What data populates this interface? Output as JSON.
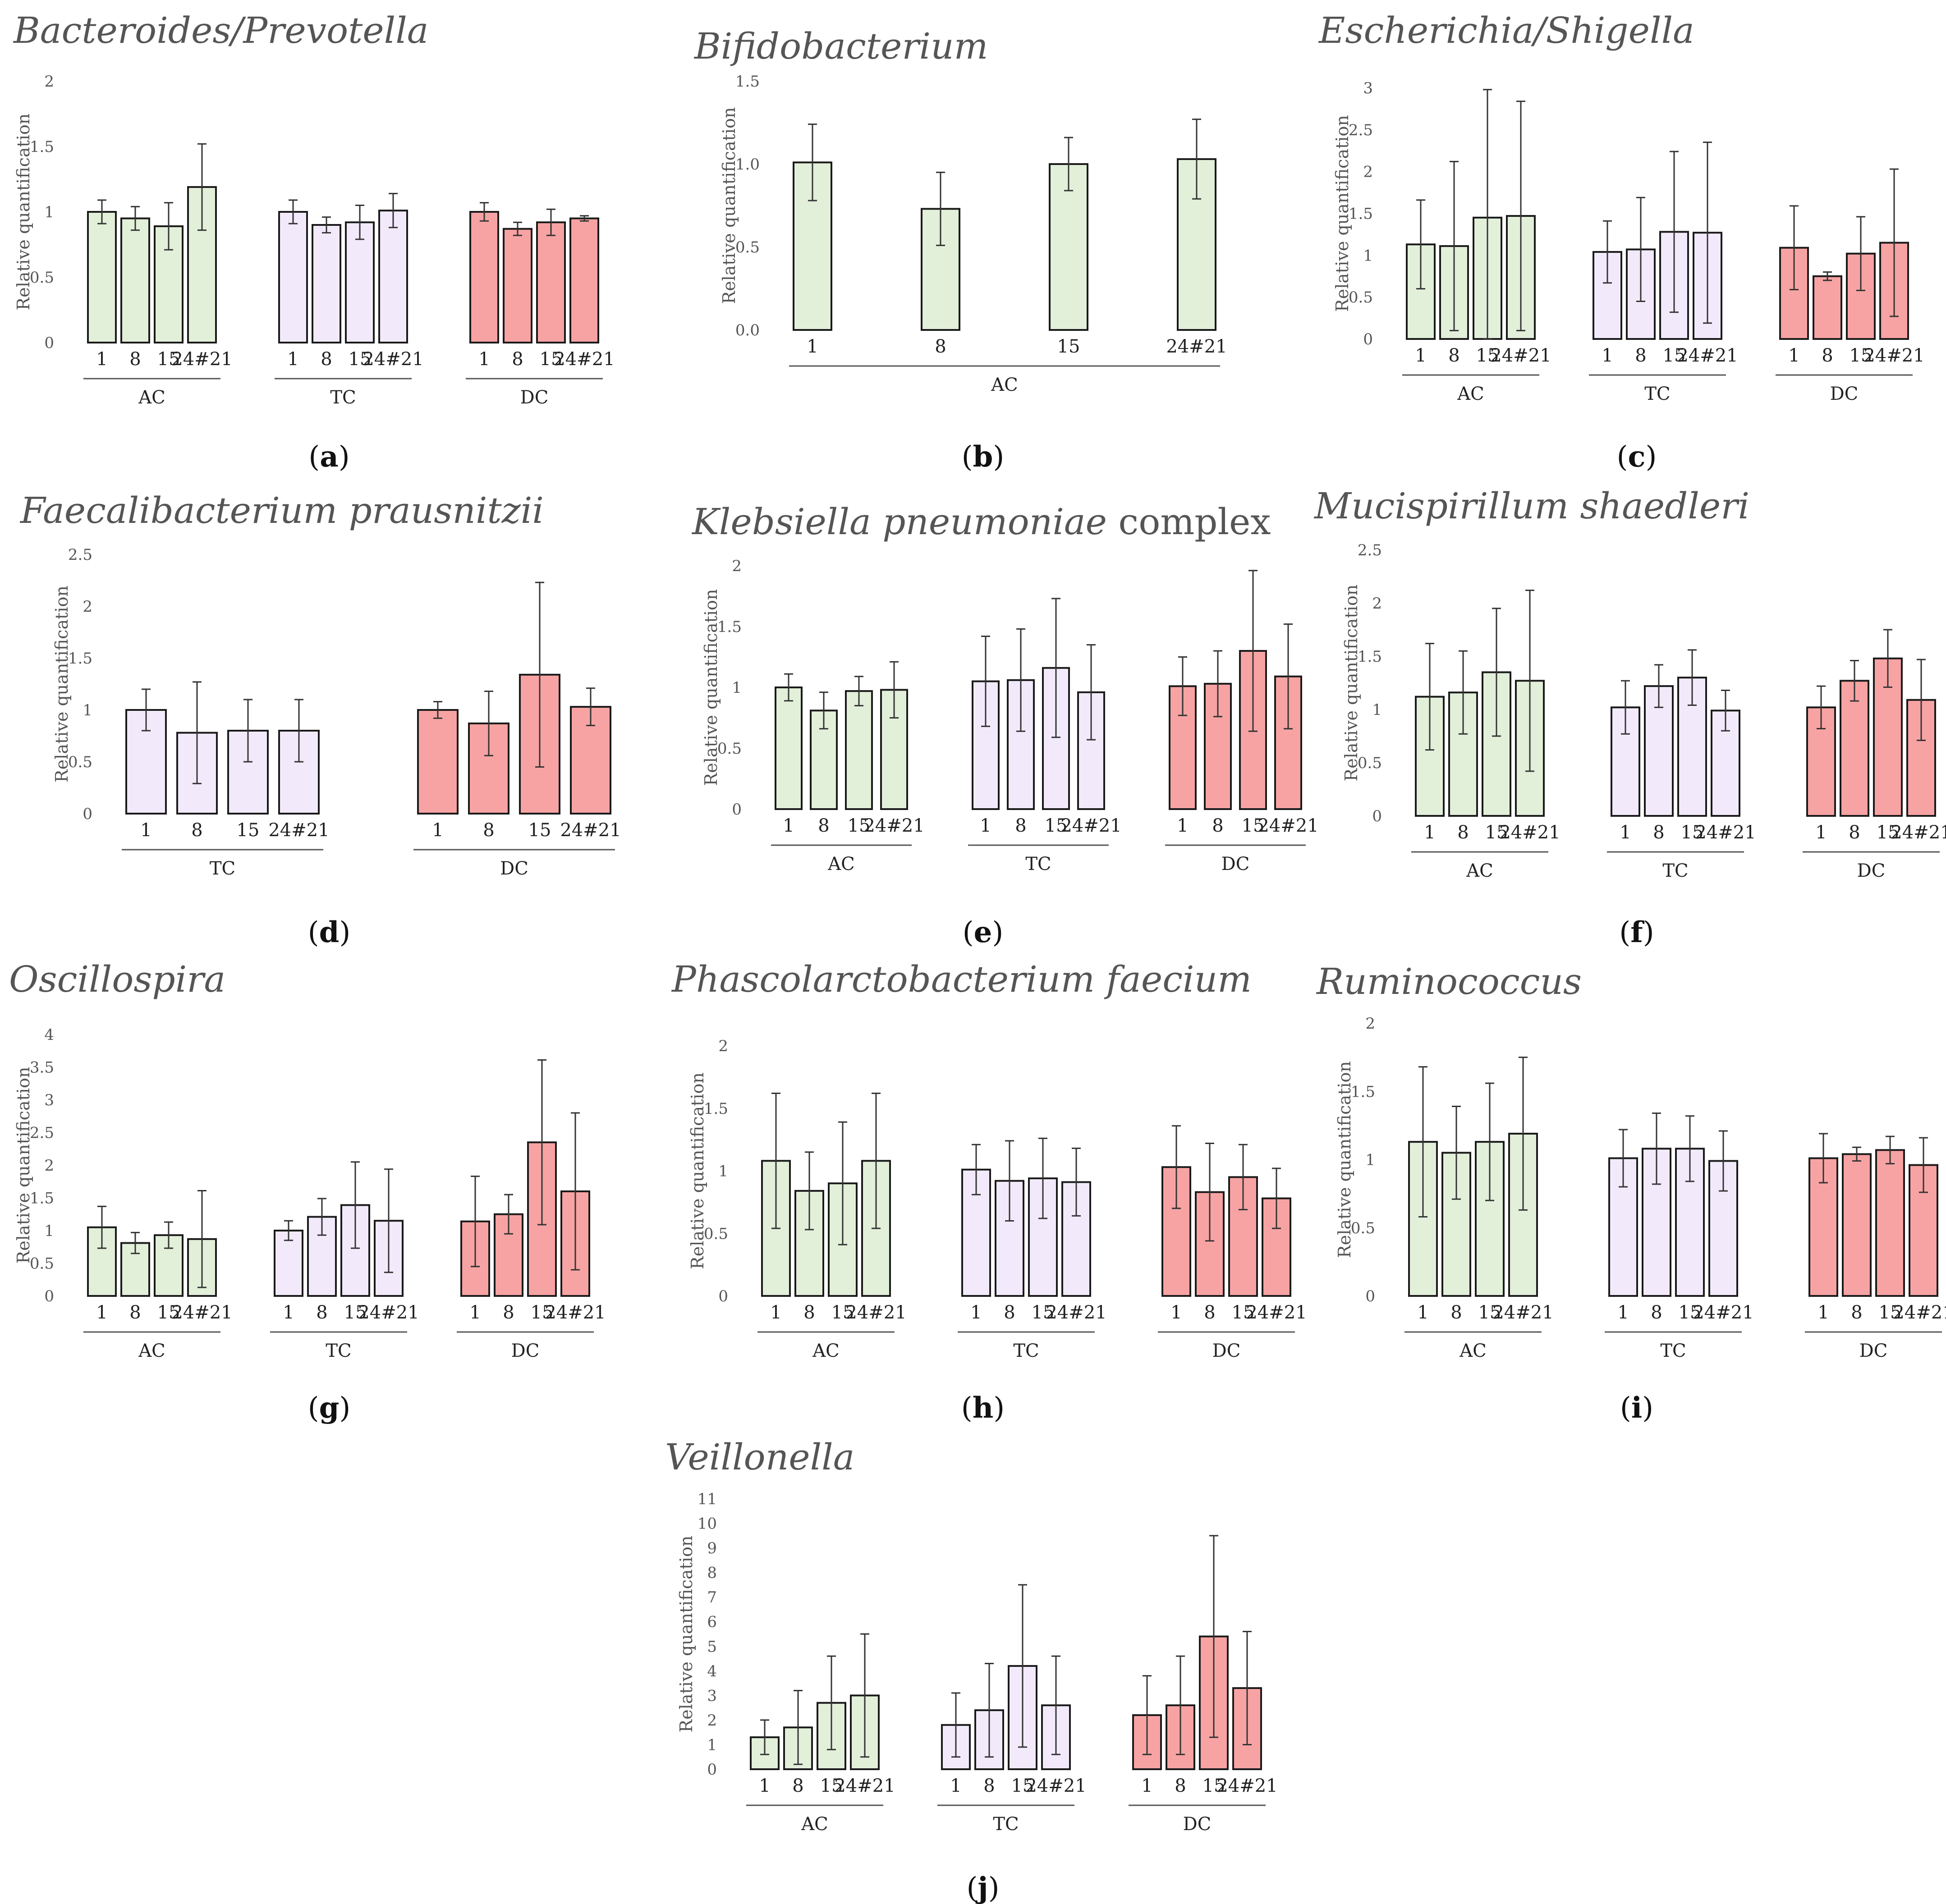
{
  "figure": {
    "y_axis_label": "Relative quantification",
    "colors": {
      "AC": "#e2efd9",
      "TC": "#f2eafb",
      "DC": "#f7a3a3",
      "edge": "#1a1a1a"
    }
  },
  "chart_data": [
    {
      "id": "a",
      "type": "bar",
      "panel_label": "a",
      "title": [
        {
          "text": "Bacteroides/Prevotella",
          "italic": true
        }
      ],
      "ylabel": "Relative quantification",
      "ylim": [
        0,
        2
      ],
      "yticks": [
        "0",
        "0.5",
        "1",
        "1.5",
        "2"
      ],
      "categories": [
        "1",
        "8",
        "15",
        "24#21"
      ],
      "groups": [
        {
          "name": "AC",
          "values": [
            1.0,
            0.95,
            0.89,
            1.19
          ],
          "errors": [
            0.09,
            0.09,
            0.18,
            0.33
          ]
        },
        {
          "name": "TC",
          "values": [
            1.0,
            0.9,
            0.92,
            1.01
          ],
          "errors": [
            0.09,
            0.06,
            0.13,
            0.13
          ]
        },
        {
          "name": "DC",
          "values": [
            1.0,
            0.87,
            0.92,
            0.95
          ],
          "errors": [
            0.07,
            0.05,
            0.1,
            0.02
          ]
        }
      ]
    },
    {
      "id": "b",
      "type": "bar",
      "panel_label": "b",
      "title": [
        {
          "text": "Bifidobacterium",
          "italic": true
        }
      ],
      "ylabel": "Relative quantification",
      "ylim": [
        0,
        1.5
      ],
      "yticks": [
        "0.0",
        "0.5",
        "1.0",
        "1.5"
      ],
      "categories": [
        "1",
        "8",
        "15",
        "24#21"
      ],
      "groups": [
        {
          "name": "AC",
          "values": [
            1.01,
            0.73,
            1.0,
            1.03
          ],
          "errors": [
            0.23,
            0.22,
            0.16,
            0.24
          ]
        }
      ]
    },
    {
      "id": "c",
      "type": "bar",
      "panel_label": "c",
      "title": [
        {
          "text": "Escherichia/Shigella",
          "italic": true
        }
      ],
      "ylabel": "Relative quantification",
      "ylim": [
        0,
        3
      ],
      "yticks": [
        "0",
        "0.5",
        "1",
        "1.5",
        "2",
        "2.5",
        "3"
      ],
      "categories": [
        "1",
        "8",
        "15",
        "24#21"
      ],
      "groups": [
        {
          "name": "AC",
          "values": [
            1.13,
            1.11,
            1.45,
            1.47
          ],
          "errors": [
            0.53,
            1.01,
            1.53,
            1.37
          ]
        },
        {
          "name": "TC",
          "values": [
            1.04,
            1.07,
            1.28,
            1.27
          ],
          "errors": [
            0.37,
            0.62,
            0.96,
            1.08
          ]
        },
        {
          "name": "DC",
          "values": [
            1.09,
            0.75,
            1.02,
            1.15
          ],
          "errors": [
            0.5,
            0.05,
            0.44,
            0.88
          ]
        }
      ]
    },
    {
      "id": "d",
      "type": "bar",
      "panel_label": "d",
      "title": [
        {
          "text": "Faecalibacterium prausnitzii",
          "italic": true
        }
      ],
      "ylabel": "Relative quantification",
      "ylim": [
        0,
        2.5
      ],
      "yticks": [
        "0",
        "0.5",
        "1",
        "1.5",
        "2",
        "2.5"
      ],
      "categories": [
        "1",
        "8",
        "15",
        "24#21"
      ],
      "groups": [
        {
          "name": "TC",
          "values": [
            1.0,
            0.78,
            0.8,
            0.8
          ],
          "errors": [
            0.2,
            0.49,
            0.3,
            0.3
          ]
        },
        {
          "name": "DC",
          "values": [
            1.0,
            0.87,
            1.34,
            1.03
          ],
          "errors": [
            0.08,
            0.31,
            0.89,
            0.18
          ]
        }
      ]
    },
    {
      "id": "e",
      "type": "bar",
      "panel_label": "e",
      "title": [
        {
          "text": "Klebsiella pneumoniae",
          "italic": true
        },
        {
          "text": " complex",
          "italic": false
        }
      ],
      "ylabel": "Relative quantification",
      "ylim": [
        0,
        2
      ],
      "yticks": [
        "0",
        "0.5",
        "1",
        "1.5",
        "2"
      ],
      "categories": [
        "1",
        "8",
        "15",
        "24#21"
      ],
      "groups": [
        {
          "name": "AC",
          "values": [
            1.0,
            0.81,
            0.97,
            0.98
          ],
          "errors": [
            0.11,
            0.15,
            0.12,
            0.23
          ]
        },
        {
          "name": "TC",
          "values": [
            1.05,
            1.06,
            1.16,
            0.96
          ],
          "errors": [
            0.37,
            0.42,
            0.57,
            0.39
          ]
        },
        {
          "name": "DC",
          "values": [
            1.01,
            1.03,
            1.3,
            1.09
          ],
          "errors": [
            0.24,
            0.27,
            0.66,
            0.43
          ]
        }
      ]
    },
    {
      "id": "f",
      "type": "bar",
      "panel_label": "f",
      "title": [
        {
          "text": "Mucispirillum shaedleri",
          "italic": true
        }
      ],
      "ylabel": "Relative quantification",
      "ylim": [
        0,
        2.5
      ],
      "yticks": [
        "0",
        "0.5",
        "1",
        "1.5",
        "2",
        "2.5"
      ],
      "categories": [
        "1",
        "8",
        "15",
        "24#21"
      ],
      "groups": [
        {
          "name": "AC",
          "values": [
            1.12,
            1.16,
            1.35,
            1.27
          ],
          "errors": [
            0.5,
            0.39,
            0.6,
            0.85
          ]
        },
        {
          "name": "TC",
          "values": [
            1.02,
            1.22,
            1.3,
            0.99
          ],
          "errors": [
            0.25,
            0.2,
            0.26,
            0.19
          ]
        },
        {
          "name": "DC",
          "values": [
            1.02,
            1.27,
            1.48,
            1.09
          ],
          "errors": [
            0.2,
            0.19,
            0.27,
            0.38
          ]
        }
      ]
    },
    {
      "id": "g",
      "type": "bar",
      "panel_label": "g",
      "title": [
        {
          "text": "Oscillospira",
          "italic": true
        }
      ],
      "ylabel": "Relative quantification",
      "ylim": [
        0,
        4
      ],
      "yticks": [
        "0",
        "0.5",
        "1",
        "1.5",
        "2",
        "2.5",
        "3",
        "3.5",
        "4"
      ],
      "categories": [
        "1",
        "8",
        "15",
        "24#21"
      ],
      "groups": [
        {
          "name": "AC",
          "values": [
            1.05,
            0.81,
            0.93,
            0.87
          ],
          "errors": [
            0.32,
            0.16,
            0.2,
            0.74
          ]
        },
        {
          "name": "TC",
          "values": [
            1.0,
            1.21,
            1.39,
            1.15
          ],
          "errors": [
            0.15,
            0.28,
            0.66,
            0.79
          ]
        },
        {
          "name": "DC",
          "values": [
            1.14,
            1.25,
            2.35,
            1.6
          ],
          "errors": [
            0.69,
            0.3,
            1.26,
            1.2
          ]
        }
      ]
    },
    {
      "id": "h",
      "type": "bar",
      "panel_label": "h",
      "title": [
        {
          "text": "Phascolarctobacterium faecium",
          "italic": true
        }
      ],
      "ylabel": "Relative quantification",
      "ylim": [
        0,
        2
      ],
      "yticks": [
        "0",
        "0.5",
        "1",
        "1.5",
        "2"
      ],
      "categories": [
        "1",
        "8",
        "15",
        "24#21"
      ],
      "groups": [
        {
          "name": "AC",
          "values": [
            1.08,
            0.84,
            0.9,
            1.08
          ],
          "errors": [
            0.54,
            0.31,
            0.49,
            0.54
          ]
        },
        {
          "name": "TC",
          "values": [
            1.01,
            0.92,
            0.94,
            0.91
          ],
          "errors": [
            0.2,
            0.32,
            0.32,
            0.27
          ]
        },
        {
          "name": "DC",
          "values": [
            1.03,
            0.83,
            0.95,
            0.78
          ],
          "errors": [
            0.33,
            0.39,
            0.26,
            0.24
          ]
        }
      ]
    },
    {
      "id": "i",
      "type": "bar",
      "panel_label": "i",
      "title": [
        {
          "text": "Ruminococcus",
          "italic": true
        }
      ],
      "ylabel": "Relative quantification",
      "ylim": [
        0,
        2
      ],
      "yticks": [
        "0",
        "0.5",
        "1",
        "1.5",
        "2"
      ],
      "categories": [
        "1",
        "8",
        "15",
        "24#21"
      ],
      "groups": [
        {
          "name": "AC",
          "values": [
            1.13,
            1.05,
            1.13,
            1.19
          ],
          "errors": [
            0.55,
            0.34,
            0.43,
            0.56
          ]
        },
        {
          "name": "TC",
          "values": [
            1.01,
            1.08,
            1.08,
            0.99
          ],
          "errors": [
            0.21,
            0.26,
            0.24,
            0.22
          ]
        },
        {
          "name": "DC",
          "values": [
            1.01,
            1.04,
            1.07,
            0.96
          ],
          "errors": [
            0.18,
            0.05,
            0.1,
            0.2
          ]
        }
      ]
    },
    {
      "id": "j",
      "type": "bar",
      "panel_label": "j",
      "title": [
        {
          "text": "Veillonella",
          "italic": true
        }
      ],
      "ylabel": "Relative quantification",
      "ylim": [
        0,
        11
      ],
      "yticks": [
        "0",
        "1",
        "2",
        "3",
        "4",
        "5",
        "6",
        "7",
        "8",
        "9",
        "10",
        "11"
      ],
      "categories": [
        "1",
        "8",
        "15",
        "24#21"
      ],
      "groups": [
        {
          "name": "AC",
          "values": [
            1.3,
            1.7,
            2.7,
            3.0
          ],
          "errors": [
            0.7,
            1.5,
            1.9,
            2.5
          ]
        },
        {
          "name": "TC",
          "values": [
            1.8,
            2.4,
            4.2,
            2.6
          ],
          "errors": [
            1.3,
            1.9,
            3.3,
            2.0
          ]
        },
        {
          "name": "DC",
          "values": [
            2.2,
            2.6,
            5.4,
            3.3
          ],
          "errors": [
            1.6,
            2.0,
            4.1,
            2.3
          ]
        }
      ]
    }
  ]
}
